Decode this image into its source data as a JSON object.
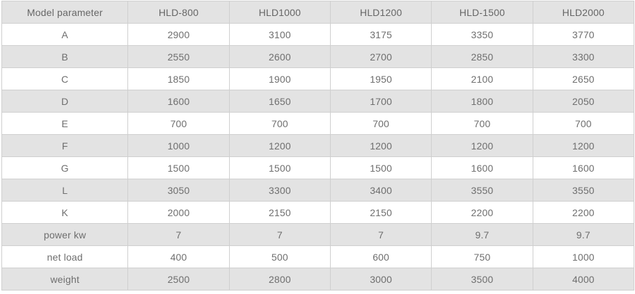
{
  "chart_data": {
    "type": "table",
    "title": "",
    "columns": [
      "Model parameter",
      "HLD-800",
      "HLD1000",
      "HLD1200",
      "HLD-1500",
      "HLD2000"
    ],
    "rows": [
      {
        "label": "A",
        "values": [
          "2900",
          "3100",
          "3175",
          "3350",
          "3770"
        ]
      },
      {
        "label": "B",
        "values": [
          "2550",
          "2600",
          "2700",
          "2850",
          "3300"
        ]
      },
      {
        "label": "C",
        "values": [
          "1850",
          "1900",
          "1950",
          "2100",
          "2650"
        ]
      },
      {
        "label": "D",
        "values": [
          "1600",
          "1650",
          "1700",
          "1800",
          "2050"
        ]
      },
      {
        "label": "E",
        "values": [
          "700",
          "700",
          "700",
          "700",
          "700"
        ]
      },
      {
        "label": "F",
        "values": [
          "1000",
          "1200",
          "1200",
          "1200",
          "1200"
        ]
      },
      {
        "label": "G",
        "values": [
          "1500",
          "1500",
          "1500",
          "1600",
          "1600"
        ]
      },
      {
        "label": "L",
        "values": [
          "3050",
          "3300",
          "3400",
          "3550",
          "3550"
        ]
      },
      {
        "label": "K",
        "values": [
          "2000",
          "2150",
          "2150",
          "2200",
          "2200"
        ]
      },
      {
        "label": "power kw",
        "values": [
          "7",
          "7",
          "7",
          "9.7",
          "9.7"
        ]
      },
      {
        "label": "net load",
        "values": [
          "400",
          "500",
          "600",
          "750",
          "1000"
        ]
      },
      {
        "label": "weight",
        "values": [
          "2500",
          "2800",
          "3000",
          "3500",
          "4000"
        ]
      }
    ],
    "layout": {
      "striped": true,
      "stripe_order": "white-then-gray",
      "header_position": "top"
    },
    "colors": {
      "header_bg": "#e3e3e3",
      "stripe_bg": "#e3e3e3",
      "row_bg": "#ffffff",
      "border": "#cfcfcf",
      "text": "#6e6e6e"
    }
  }
}
